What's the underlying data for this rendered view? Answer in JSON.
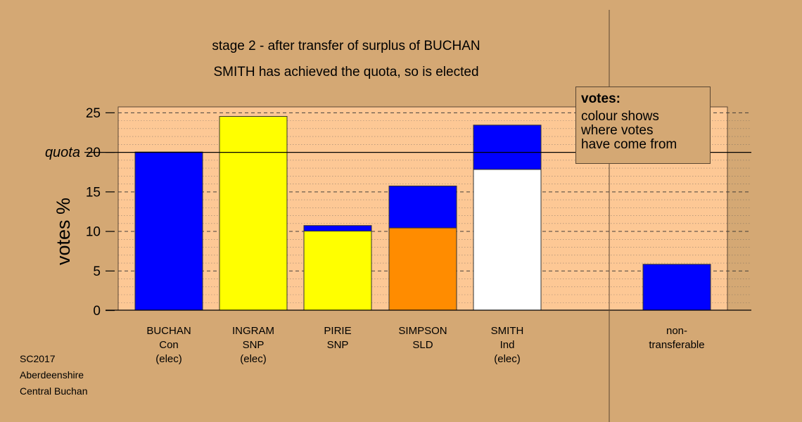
{
  "title_line1": "stage 2 - after transfer of surplus of BUCHAN",
  "title_line2": "SMITH has achieved the quota, so is elected",
  "ylabel": "votes %",
  "quota_label": "quota",
  "legend": {
    "title": "votes:",
    "body": "colour shows\nwhere votes\nhave come from"
  },
  "source": [
    "SC2017",
    "Aberdeenshire",
    "Central Buchan"
  ],
  "colors": {
    "background": "#d4a874",
    "plot_area": "#fdc895",
    "con": "#0000ff",
    "snp": "#ffff00",
    "sld": "#ff8c00",
    "ind": "#ffffff"
  },
  "chart_data": {
    "type": "bar",
    "stacked": true,
    "ylim": [
      0,
      25.7
    ],
    "yticks": [
      0,
      5,
      10,
      15,
      20,
      25
    ],
    "quota": 20,
    "grid": "dotted horizontal lines every 1%, dashed every 5%",
    "categories": [
      {
        "lines": [
          "BUCHAN",
          "Con",
          "(elec)"
        ],
        "segments": [
          {
            "from": "Con",
            "value": 20.0,
            "color": "#0000ff"
          }
        ]
      },
      {
        "lines": [
          "INGRAM",
          "SNP",
          "(elec)"
        ],
        "segments": [
          {
            "from": "SNP",
            "value": 24.5,
            "color": "#ffff00"
          }
        ]
      },
      {
        "lines": [
          "PIRIE",
          "SNP"
        ],
        "segments": [
          {
            "from": "SNP",
            "value": 10.0,
            "color": "#ffff00"
          },
          {
            "from": "Con",
            "value": 0.7,
            "color": "#0000ff"
          }
        ]
      },
      {
        "lines": [
          "SIMPSON",
          "SLD"
        ],
        "segments": [
          {
            "from": "SLD",
            "value": 10.4,
            "color": "#ff8c00"
          },
          {
            "from": "Con",
            "value": 5.3,
            "color": "#0000ff"
          }
        ]
      },
      {
        "lines": [
          "SMITH",
          "Ind",
          "(elec)"
        ],
        "segments": [
          {
            "from": "Ind",
            "value": 17.8,
            "color": "#ffffff"
          },
          {
            "from": "Con",
            "value": 5.6,
            "color": "#0000ff"
          }
        ]
      }
    ],
    "non_transferable": {
      "lines": [
        "non-",
        "transferable"
      ],
      "segments": [
        {
          "from": "Con",
          "value": 5.8,
          "color": "#0000ff"
        }
      ]
    }
  }
}
